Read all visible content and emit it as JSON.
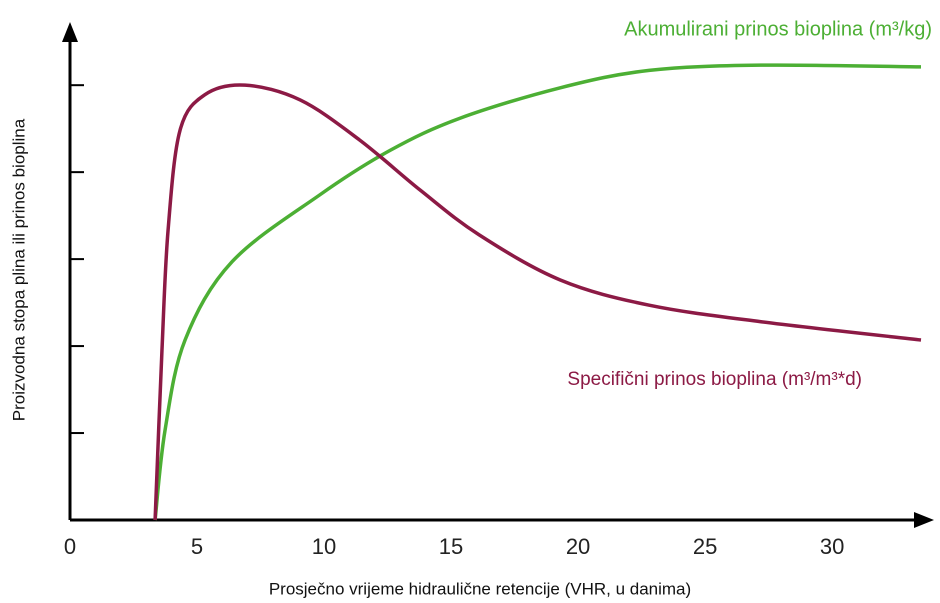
{
  "chart_data": {
    "type": "line",
    "x_label": "Prosječno vrijeme hidraulične retencije (VHR, u danima)",
    "y_label": "Proizvodna stopa plina ili prinos bioplina",
    "xlim": [
      0,
      33.5
    ],
    "xticks": [
      0,
      5,
      10,
      15,
      20,
      25,
      30
    ],
    "ylim": [
      0,
      5.6
    ],
    "yticks": [
      1,
      2,
      3,
      4,
      5
    ],
    "series": [
      {
        "name": "Akumulirani prinos bioplina (m³/kg)",
        "color": "#4caf34",
        "x": [
          3.35,
          3.74,
          4.53,
          6.38,
          9.84,
          12.6,
          15.35,
          19.3,
          22.8,
          27.2,
          33.5
        ],
        "values": [
          0,
          1.03,
          2.07,
          2.97,
          3.74,
          4.25,
          4.62,
          4.97,
          5.17,
          5.23,
          5.21
        ]
      },
      {
        "name": "Specifični prinos bioplina (m³/m³*d)",
        "color": "#8c1a45",
        "x": [
          3.35,
          3.62,
          3.86,
          4.33,
          5.31,
          6.89,
          9.06,
          11.4,
          13.8,
          16.1,
          19.3,
          22.8,
          27.2,
          33.5
        ],
        "values": [
          0,
          1.95,
          3.33,
          4.48,
          4.89,
          5.0,
          4.83,
          4.37,
          3.79,
          3.28,
          2.76,
          2.47,
          2.28,
          2.07
        ]
      }
    ]
  }
}
